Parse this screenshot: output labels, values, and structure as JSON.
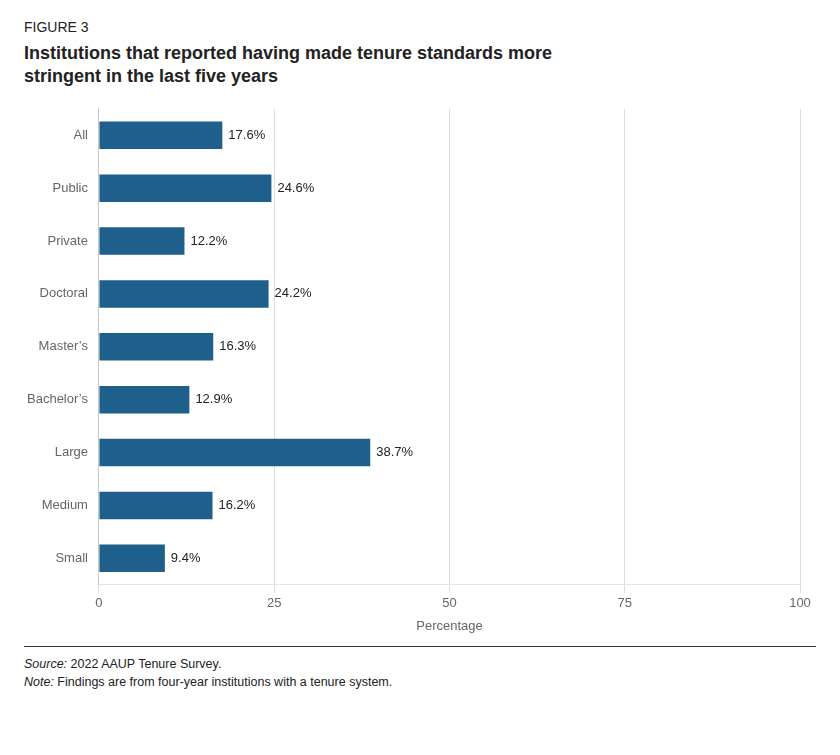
{
  "chart_data": {
    "type": "bar",
    "orientation": "horizontal",
    "subtitle": "FIGURE 3",
    "title": "Institutions that reported having made tenure standards more\nstringent in the last five years",
    "categories": [
      "All",
      "Public",
      "Private",
      "Doctoral",
      "Master’s",
      "Bachelor’s",
      "Large",
      "Medium",
      "Small"
    ],
    "values": [
      17.6,
      24.6,
      12.2,
      24.2,
      16.3,
      12.9,
      38.7,
      16.2,
      9.4
    ],
    "value_labels": [
      "17.6%",
      "24.6%",
      "12.2%",
      "24.2%",
      "16.3%",
      "12.9%",
      "38.7%",
      "16.2%",
      "9.4%"
    ],
    "data_labels": true,
    "color": "#1F5F8B",
    "xlabel": "Percentage",
    "xlim": [
      0,
      100
    ],
    "xticks": [
      0,
      25,
      50,
      75,
      100
    ],
    "grid": true,
    "annotations": [
      "Source: 2022 AAUP Tenure Survey.",
      "Note: Findings are from four-year institutions with a tenure system."
    ]
  }
}
